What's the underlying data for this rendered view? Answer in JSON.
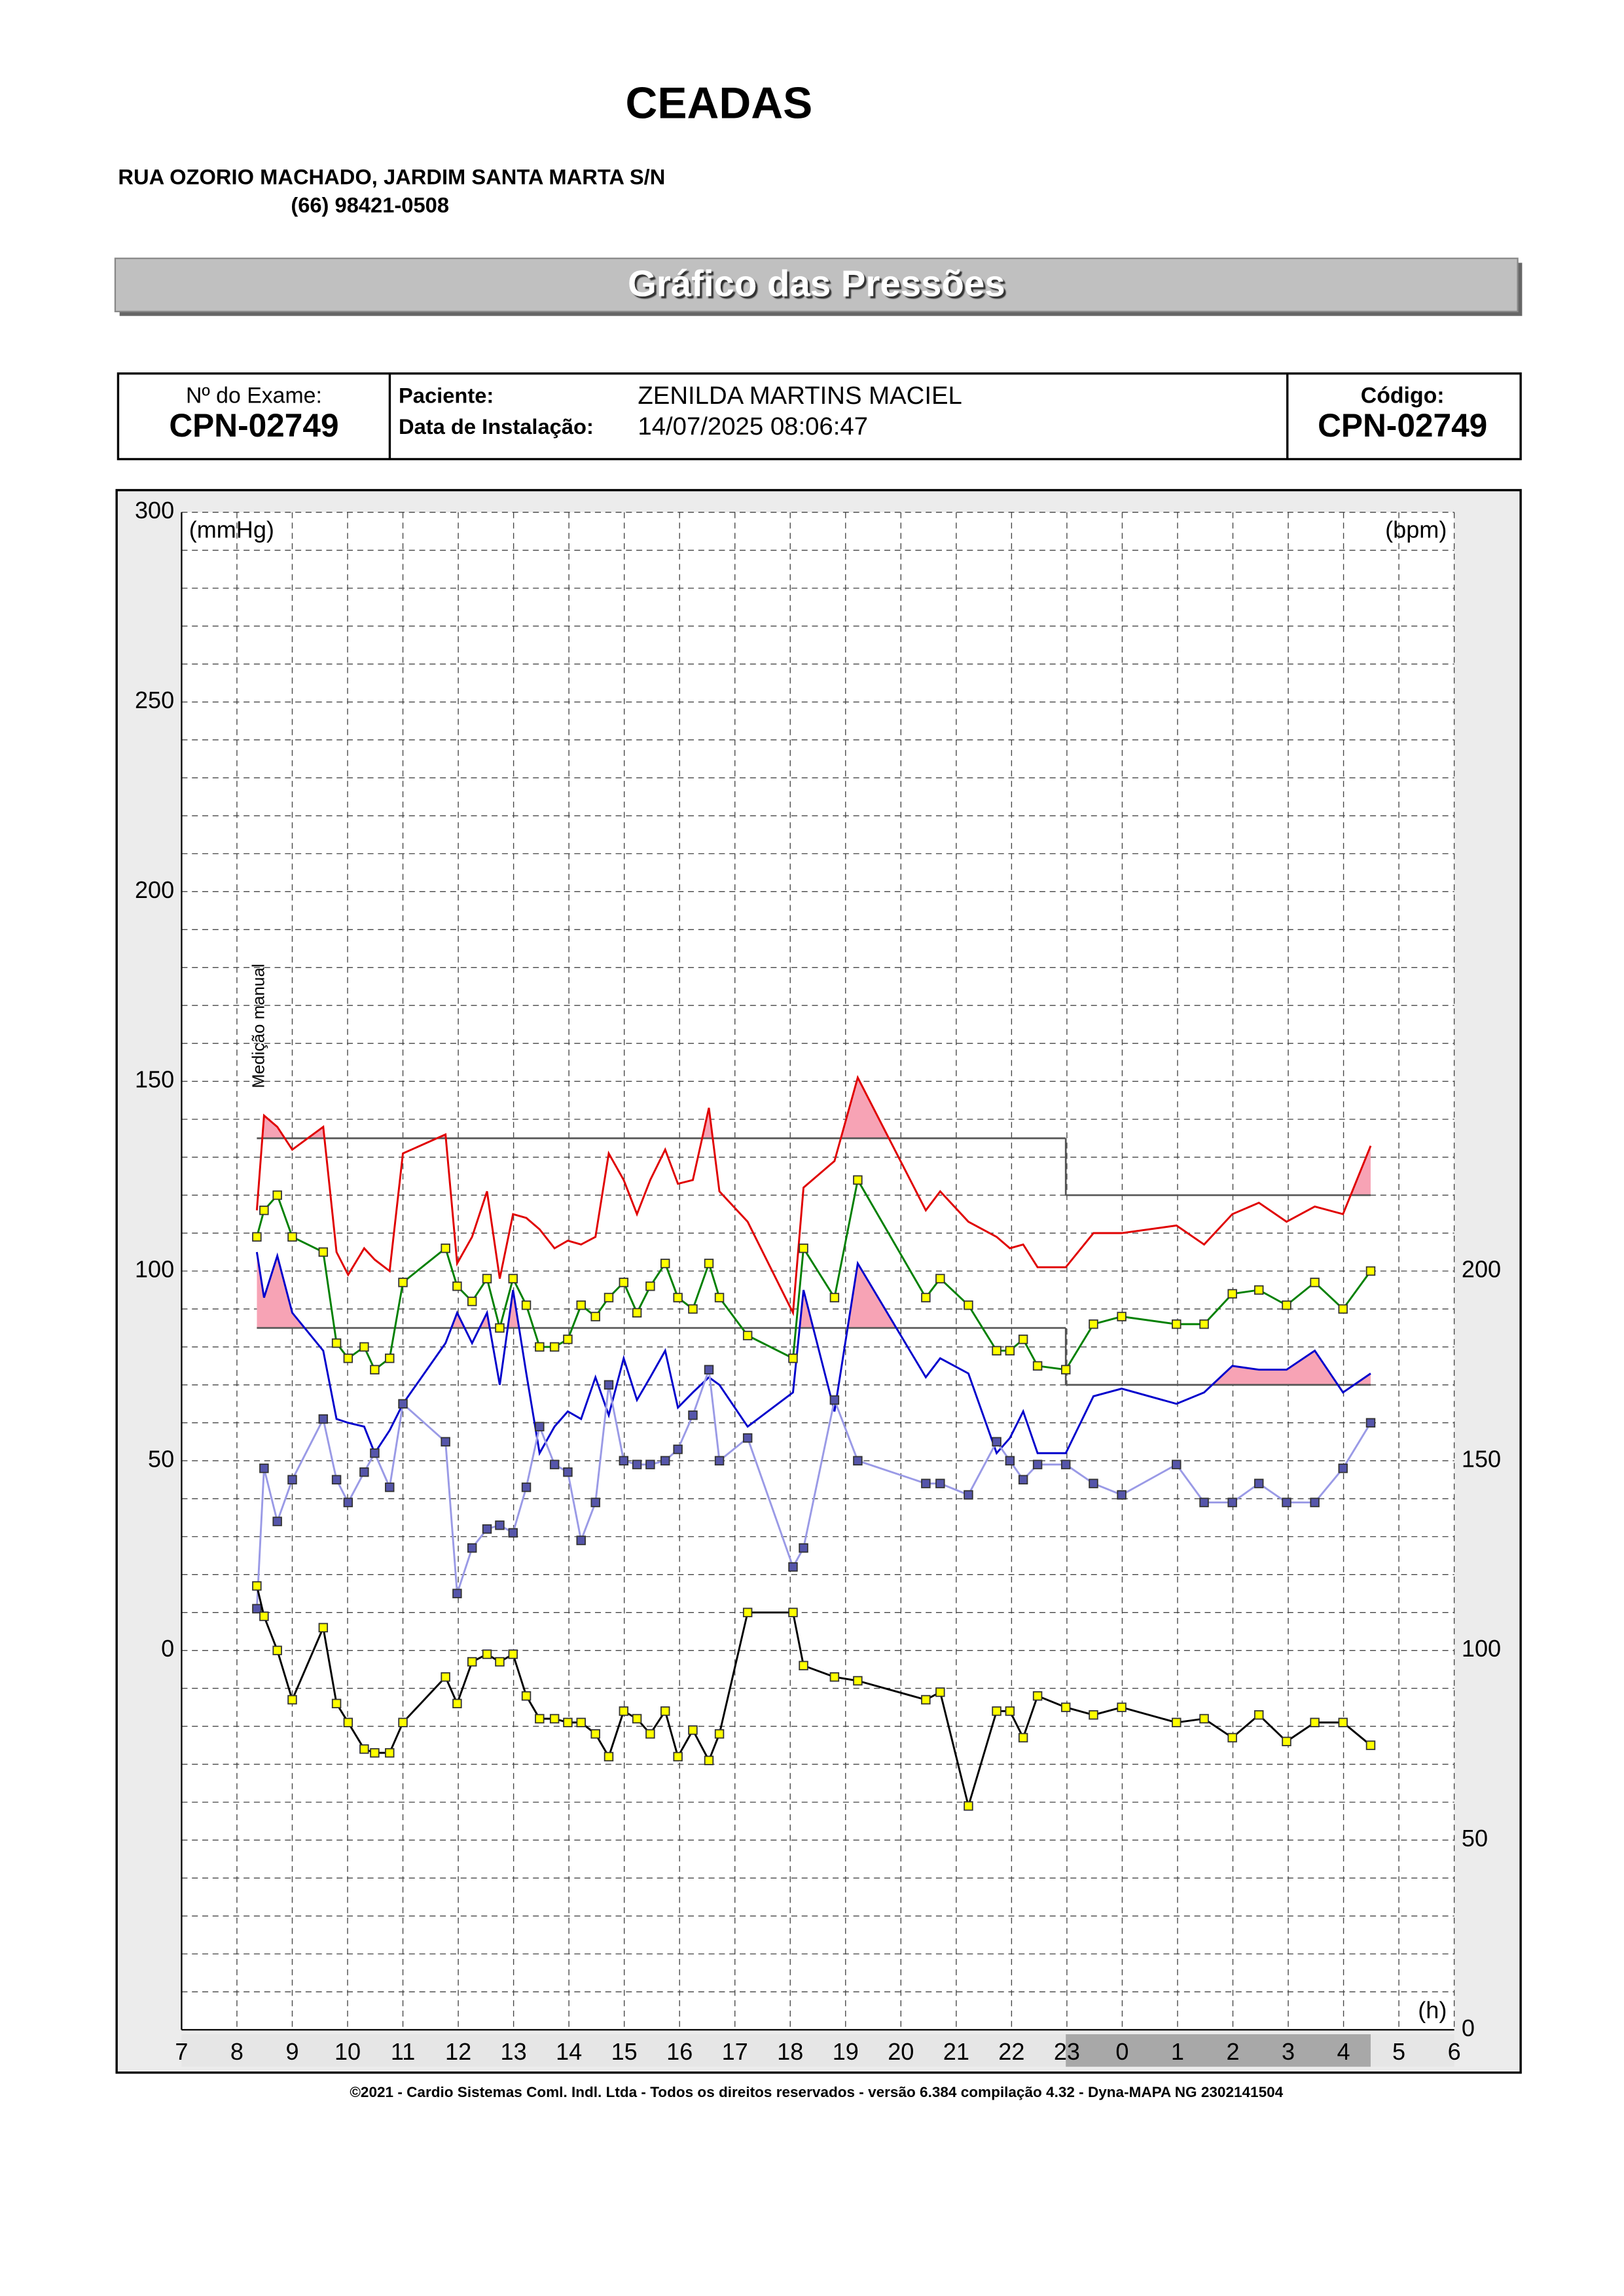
{
  "header": {
    "title": "CEADAS",
    "address": "RUA OZORIO MACHADO, JARDIM SANTA MARTA S/N",
    "phone": "(66) 98421-0508",
    "banner": "Gráfico das Pressões"
  },
  "info": {
    "exam_label": "Nº do Exame:",
    "exam_value": "CPN-02749",
    "patient_label": "Paciente:",
    "patient_value": "ZENILDA MARTINS  MACIEL",
    "date_label": "Data de Instalação:",
    "date_value": "14/07/2025 08:06:47",
    "code_label": "Código:",
    "code_value": "CPN-02749"
  },
  "chart_data": {
    "type": "line",
    "ylabel": "(mmHg)",
    "y2label": "(bpm)",
    "xlabel": "(h)",
    "annotation": "Medição manual",
    "xlim": [
      7,
      30
    ],
    "xticks": [
      7,
      8,
      9,
      10,
      11,
      12,
      13,
      14,
      15,
      16,
      17,
      18,
      19,
      20,
      21,
      22,
      23,
      {
        "value": 24,
        "label": "0"
      },
      {
        "value": 25,
        "label": "1"
      },
      {
        "value": 26,
        "label": "2"
      },
      {
        "value": 27,
        "label": "3"
      },
      {
        "value": 28,
        "label": "4"
      },
      {
        "value": 29,
        "label": "5"
      },
      {
        "value": 30,
        "label": "6"
      }
    ],
    "ylim": [
      -100,
      300
    ],
    "yticks": [
      0,
      50,
      100,
      150,
      200,
      250,
      300
    ],
    "yminorticks": [
      -90,
      -80,
      -70,
      -60,
      -50,
      -40,
      -30,
      -20,
      -10,
      10,
      20,
      30,
      40,
      60,
      70,
      80,
      90,
      110,
      120,
      130,
      140,
      160,
      170,
      180,
      190,
      210,
      220,
      230,
      240,
      260,
      270,
      280,
      290,
      -100
    ],
    "y2lim": [
      0,
      400
    ],
    "y2ticks": [
      0,
      50,
      100,
      150,
      200
    ],
    "grid": true,
    "limits": [
      {
        "x": [
          8.36,
          22.98
        ],
        "systolic": 135,
        "diastolic": 85
      },
      {
        "x": [
          22.98,
          28.49
        ],
        "systolic": 120,
        "diastolic": 70
      }
    ],
    "limit_color": "#555555",
    "excess_color": "#f7a3b5",
    "night_band_color": "#a8a8a8",
    "x": [
      8.36,
      8.49,
      8.73,
      9.0,
      9.56,
      9.8,
      10.01,
      10.3,
      10.49,
      10.76,
      11.0,
      11.77,
      11.98,
      12.25,
      12.52,
      12.75,
      12.99,
      13.23,
      13.47,
      13.74,
      13.98,
      14.22,
      14.48,
      14.72,
      14.99,
      15.23,
      15.47,
      15.74,
      15.97,
      16.24,
      16.53,
      16.72,
      17.23,
      18.05,
      18.24,
      18.8,
      19.22,
      20.45,
      20.71,
      21.22,
      21.73,
      21.97,
      22.21,
      22.47,
      22.98,
      23.48,
      23.99,
      24.98,
      25.48,
      25.99,
      26.47,
      26.97,
      27.48,
      27.99,
      28.49
    ],
    "series": [
      {
        "color": "#e00000",
        "limit": "systolic",
        "values": [
          116,
          141,
          138,
          132,
          138,
          105,
          99,
          106,
          103,
          100,
          131,
          136,
          102,
          109,
          121,
          98,
          115,
          114,
          111,
          106,
          108,
          107,
          109,
          131,
          124,
          115,
          124,
          132,
          123,
          124,
          143,
          121,
          113,
          89,
          122,
          129,
          151,
          116,
          121,
          113,
          109,
          106,
          107,
          101,
          101,
          110,
          110,
          112,
          107,
          115,
          118,
          113,
          117,
          115,
          133
        ]
      },
      {
        "color": "#0000cc",
        "limit": "diastolic",
        "values": [
          105,
          93,
          104,
          89,
          79,
          61,
          60,
          59,
          52,
          58,
          65,
          81,
          89,
          81,
          89,
          70,
          95,
          73,
          52,
          59,
          63,
          61,
          72,
          62,
          77,
          66,
          72,
          79,
          64,
          68,
          72,
          70,
          59,
          68,
          95,
          63,
          102,
          72,
          77,
          73,
          52,
          56,
          63,
          52,
          52,
          67,
          69,
          65,
          68,
          75,
          74,
          74,
          79,
          68,
          73
        ]
      },
      {
        "color": "#008000",
        "marker": "#ffff00",
        "values": [
          109,
          116,
          120,
          109,
          105,
          81,
          77,
          80,
          74,
          77,
          97,
          106,
          96,
          92,
          98,
          85,
          98,
          91,
          80,
          80,
          82,
          91,
          88,
          93,
          97,
          89,
          96,
          102,
          93,
          90,
          102,
          93,
          83,
          77,
          106,
          93,
          124,
          93,
          98,
          91,
          79,
          79,
          82,
          75,
          74,
          86,
          88,
          86,
          86,
          94,
          95,
          91,
          97,
          90,
          100
        ]
      },
      {
        "color": "#9a9ae6",
        "marker": "#5555aa",
        "values": [
          11,
          48,
          34,
          45,
          61,
          45,
          39,
          47,
          52,
          43,
          65,
          55,
          15,
          27,
          32,
          33,
          31,
          43,
          59,
          49,
          47,
          29,
          39,
          70,
          50,
          49,
          49,
          50,
          53,
          62,
          74,
          50,
          56,
          22,
          27,
          66,
          50,
          44,
          44,
          41,
          55,
          50,
          45,
          49,
          49,
          44,
          41,
          49,
          39,
          39,
          44,
          39,
          39,
          48,
          60
        ]
      },
      {
        "color": "#000000",
        "marker": "#ffff00",
        "axis": "y2",
        "values": [
          117,
          109,
          100,
          87,
          106,
          86,
          81,
          74,
          73,
          73,
          81,
          93,
          86,
          97,
          99,
          97,
          99,
          88,
          82,
          82,
          81,
          81,
          78,
          72,
          84,
          82,
          78,
          84,
          72,
          79,
          71,
          78,
          110,
          110,
          96,
          93,
          92,
          87,
          89,
          59,
          84,
          84,
          77,
          88,
          85,
          83,
          85,
          81,
          82,
          77,
          83,
          76,
          81,
          81,
          75
        ]
      }
    ]
  },
  "footer": "©2021 - Cardio Sistemas Coml. Indl. Ltda - Todos os direitos reservados - versão 6.384 compilação 4.32 - Dyna-MAPA NG 2302141504"
}
